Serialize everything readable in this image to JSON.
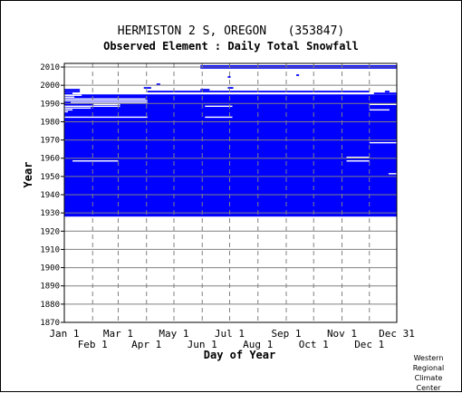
{
  "chart_data": {
    "type": "heatmap",
    "title": "HERMISTON 2 S, OREGON   (353847)",
    "subtitle": "Observed Element : Daily Total Snowfall",
    "xlabel": "Day of Year",
    "ylabel": "Year",
    "x_ticks_upper": [
      "Jan 1",
      "Mar 1",
      "May 1",
      "Jul 1",
      "Sep 1",
      "Nov 1",
      "Dec 31"
    ],
    "x_ticks_lower": [
      "Feb 1",
      "Apr 1",
      "Jun 1",
      "Aug 1",
      "Oct 1",
      "Dec 1"
    ],
    "y_ticks": [
      "1870",
      "1880",
      "1890",
      "1900",
      "1910",
      "1920",
      "1930",
      "1940",
      "1950",
      "1960",
      "1970",
      "1980",
      "1990",
      "2000",
      "2010"
    ],
    "ylim": [
      1870,
      2012
    ],
    "xlim_day": [
      1,
      365
    ],
    "grid": true,
    "color_observed": "#0000ff",
    "observed_block_years": [
      1928,
      1994
    ],
    "missing_segments": [
      {
        "year": 1994,
        "start_day": 1,
        "end_day": 20
      },
      {
        "year": 1993,
        "start_day": 1,
        "end_day": 12
      },
      {
        "year": 1992,
        "start_day": 1,
        "end_day": 90
      },
      {
        "year": 1991,
        "start_day": 1,
        "end_day": 92
      },
      {
        "year": 1990,
        "start_day": 8,
        "end_day": 92
      },
      {
        "year": 1989,
        "start_day": 33,
        "end_day": 62
      },
      {
        "year": 1988,
        "start_day": 1,
        "end_day": 62
      },
      {
        "year": 1988,
        "start_day": 155,
        "end_day": 185
      },
      {
        "year": 1987,
        "start_day": 1,
        "end_day": 30
      },
      {
        "year": 1986,
        "start_day": 1,
        "end_day": 10
      },
      {
        "year": 1985,
        "start_day": 1,
        "end_day": 5
      },
      {
        "year": 1982,
        "start_day": 1,
        "end_day": 92
      },
      {
        "year": 1982,
        "start_day": 155,
        "end_day": 185
      },
      {
        "year": 1958,
        "start_day": 10,
        "end_day": 60
      },
      {
        "year": 1960,
        "start_day": 310,
        "end_day": 335
      },
      {
        "year": 1958,
        "start_day": 310,
        "end_day": 335
      },
      {
        "year": 1968,
        "start_day": 335,
        "end_day": 365
      },
      {
        "year": 1989,
        "start_day": 335,
        "end_day": 365
      },
      {
        "year": 1986,
        "start_day": 335,
        "end_day": 357
      },
      {
        "year": 1951,
        "start_day": 356,
        "end_day": 365
      }
    ],
    "extra_observations": [
      {
        "year": 1997,
        "start_day": 1,
        "end_day": 18
      },
      {
        "year": 1996,
        "start_day": 1,
        "end_day": 18
      },
      {
        "year": 1995,
        "start_day": 1,
        "end_day": 10
      },
      {
        "year": 1996,
        "start_day": 92,
        "end_day": 335
      },
      {
        "year": 1997,
        "start_day": 150,
        "end_day": 160
      },
      {
        "year": 1995,
        "start_day": 340,
        "end_day": 365
      },
      {
        "year": 1996,
        "start_day": 352,
        "end_day": 357
      },
      {
        "year": 1998,
        "start_day": 88,
        "end_day": 96
      },
      {
        "year": 1998,
        "start_day": 180,
        "end_day": 186
      },
      {
        "year": 2000,
        "start_day": 102,
        "end_day": 106
      },
      {
        "year": 2010,
        "start_day": 150,
        "end_day": 365
      },
      {
        "year": 2009,
        "start_day": 150,
        "end_day": 365
      },
      {
        "year": 2005,
        "start_day": 255,
        "end_day": 258
      },
      {
        "year": 2004,
        "start_day": 180,
        "end_day": 183
      }
    ]
  }
}
